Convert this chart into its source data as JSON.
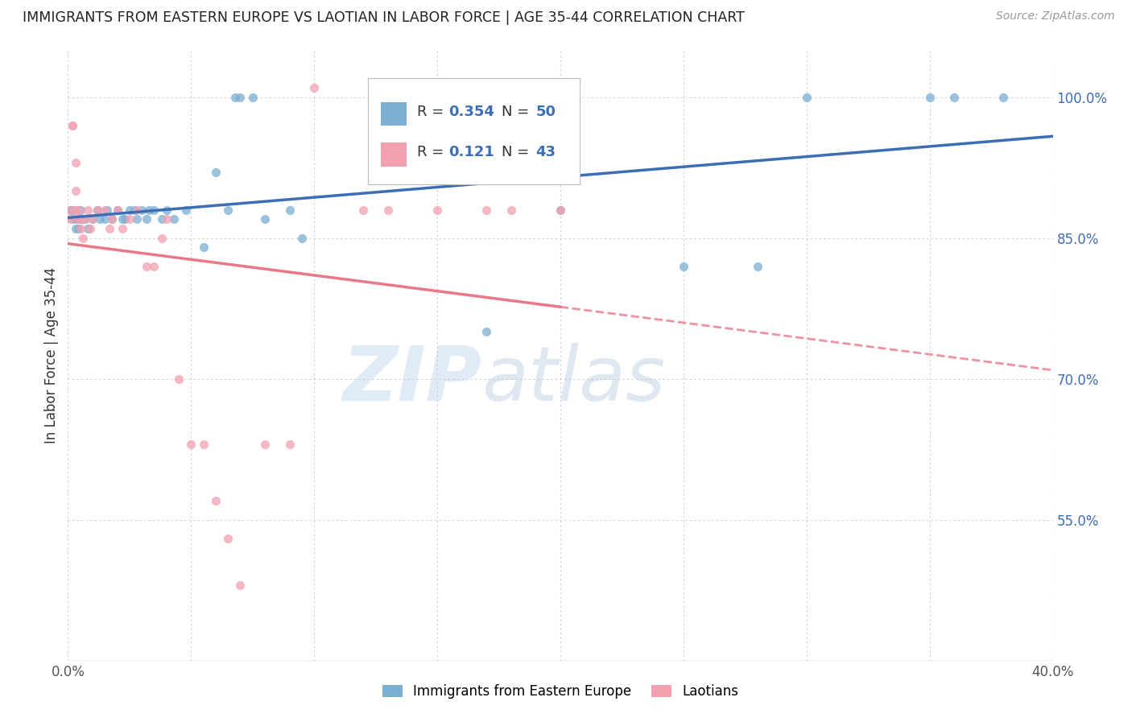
{
  "title": "IMMIGRANTS FROM EASTERN EUROPE VS LAOTIAN IN LABOR FORCE | AGE 35-44 CORRELATION CHART",
  "source": "Source: ZipAtlas.com",
  "ylabel": "In Labor Force | Age 35-44",
  "xlim": [
    0.0,
    0.4
  ],
  "ylim": [
    0.4,
    1.05
  ],
  "xtick_positions": [
    0.0,
    0.05,
    0.1,
    0.15,
    0.2,
    0.25,
    0.3,
    0.35,
    0.4
  ],
  "yticks_right": [
    1.0,
    0.85,
    0.7,
    0.55
  ],
  "ytick_right_labels": [
    "100.0%",
    "85.0%",
    "70.0%",
    "55.0%"
  ],
  "blue_R": "0.354",
  "blue_N": "50",
  "pink_R": "0.121",
  "pink_N": "43",
  "blue_color": "#7BAFD4",
  "pink_color": "#F4A0B0",
  "line_blue": "#3D6EB5",
  "line_pink": "#E8788A",
  "blue_scatter_x": [
    0.001,
    0.002,
    0.002,
    0.003,
    0.003,
    0.004,
    0.004,
    0.005,
    0.005,
    0.006,
    0.007,
    0.008,
    0.01,
    0.012,
    0.013,
    0.015,
    0.016,
    0.018,
    0.02,
    0.022,
    0.023,
    0.025,
    0.027,
    0.028,
    0.03,
    0.032,
    0.033,
    0.035,
    0.038,
    0.04,
    0.043,
    0.048,
    0.055,
    0.06,
    0.065,
    0.068,
    0.07,
    0.075,
    0.08,
    0.09,
    0.095,
    0.15,
    0.17,
    0.2,
    0.25,
    0.28,
    0.3,
    0.35,
    0.36,
    0.38
  ],
  "blue_scatter_y": [
    0.88,
    0.87,
    0.88,
    0.86,
    0.87,
    0.86,
    0.87,
    0.87,
    0.88,
    0.87,
    0.87,
    0.86,
    0.87,
    0.88,
    0.87,
    0.87,
    0.88,
    0.87,
    0.88,
    0.87,
    0.87,
    0.88,
    0.88,
    0.87,
    0.88,
    0.87,
    0.88,
    0.88,
    0.87,
    0.88,
    0.87,
    0.88,
    0.84,
    0.92,
    0.88,
    1.0,
    1.0,
    1.0,
    0.87,
    0.88,
    0.85,
    0.93,
    0.75,
    0.88,
    0.82,
    0.82,
    1.0,
    1.0,
    1.0,
    1.0
  ],
  "pink_scatter_x": [
    0.001,
    0.001,
    0.002,
    0.002,
    0.003,
    0.003,
    0.003,
    0.004,
    0.004,
    0.005,
    0.005,
    0.006,
    0.007,
    0.008,
    0.009,
    0.01,
    0.012,
    0.015,
    0.017,
    0.018,
    0.02,
    0.022,
    0.025,
    0.028,
    0.032,
    0.035,
    0.038,
    0.04,
    0.045,
    0.05,
    0.055,
    0.06,
    0.065,
    0.07,
    0.08,
    0.09,
    0.1,
    0.12,
    0.13,
    0.15,
    0.17,
    0.18,
    0.2
  ],
  "pink_scatter_y": [
    0.88,
    0.87,
    0.97,
    0.97,
    0.93,
    0.9,
    0.88,
    0.88,
    0.87,
    0.87,
    0.86,
    0.85,
    0.87,
    0.88,
    0.86,
    0.87,
    0.88,
    0.88,
    0.86,
    0.87,
    0.88,
    0.86,
    0.87,
    0.88,
    0.82,
    0.82,
    0.85,
    0.87,
    0.7,
    0.63,
    0.63,
    0.57,
    0.53,
    0.48,
    0.63,
    0.63,
    1.01,
    0.88,
    0.88,
    0.88,
    0.88,
    0.88,
    0.88
  ]
}
